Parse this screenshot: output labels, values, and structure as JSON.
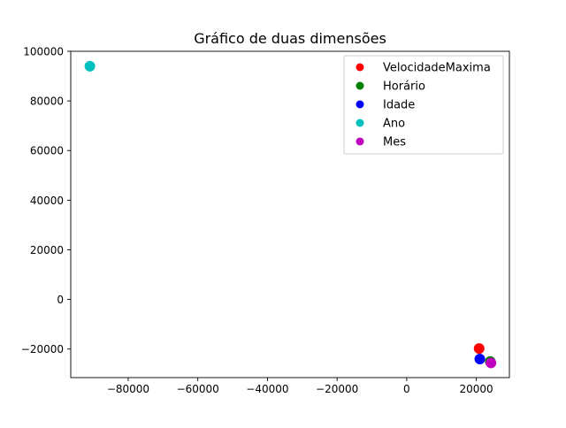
{
  "chart_data": {
    "type": "scatter",
    "title": "Gráfico de duas dimensões",
    "xlabel": "",
    "ylabel": "",
    "xlim": [
      -96500,
      29500
    ],
    "ylim": [
      -31500,
      100000
    ],
    "x_ticks": [
      -80000,
      -60000,
      -40000,
      -20000,
      0,
      20000
    ],
    "x_tick_labels": [
      "−80000",
      "−60000",
      "−40000",
      "−20000",
      "0",
      "20000"
    ],
    "y_ticks": [
      -20000,
      0,
      20000,
      40000,
      60000,
      80000,
      100000
    ],
    "y_tick_labels": [
      "−20000",
      "0",
      "20000",
      "40000",
      "60000",
      "80000",
      "100000"
    ],
    "grid": false,
    "legend_position": "top-right",
    "series": [
      {
        "name": "VelocidadeMaxima",
        "color": "#ff0000",
        "x": [
          20800
        ],
        "y": [
          -19800
        ]
      },
      {
        "name": "Horário",
        "color": "#008000",
        "x": [
          24000
        ],
        "y": [
          -25000
        ]
      },
      {
        "name": "Idade",
        "color": "#0000ff",
        "x": [
          21000
        ],
        "y": [
          -24000
        ]
      },
      {
        "name": "Ano",
        "color": "#00bfbf",
        "x": [
          -91000
        ],
        "y": [
          94000
        ]
      },
      {
        "name": "Mes",
        "color": "#bf00bf",
        "x": [
          24200
        ],
        "y": [
          -25600
        ]
      }
    ]
  }
}
